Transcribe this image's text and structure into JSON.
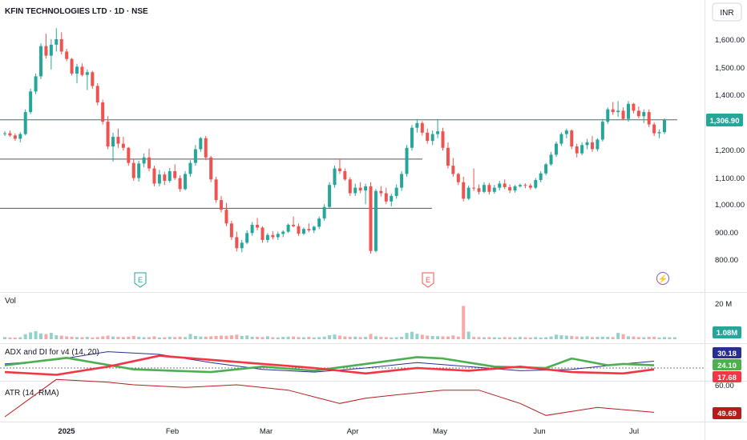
{
  "header": {
    "title": "KFIN TECHNOLOGIES LTD · 1D · NSE",
    "currency": "INR"
  },
  "colors": {
    "up": "#26a69a",
    "down": "#ef5350",
    "adx": "#2a2e8f",
    "di_plus": "#4caf50",
    "di_minus": "#f23645",
    "atr": "#b71c1c",
    "price_tag": "#26a69a"
  },
  "chart_data": [
    {
      "type": "candlestick",
      "title": "KFIN TECHNOLOGIES LTD · 1D · NSE",
      "y_axis": {
        "label": "INR",
        "ticks": [
          800,
          900,
          1000,
          1100,
          1200,
          1300,
          1400,
          1500,
          1600
        ],
        "tick_labels": [
          "800.00",
          "900.00",
          "1,000.00",
          "1,100.00",
          "1,200.00",
          "1,300.00",
          "1,400.00",
          "1,500.00",
          "1,600.00"
        ],
        "range": [
          765,
          1690
        ]
      },
      "x_axis": {
        "tick_labels": [
          {
            "label": "2025",
            "bold": true
          },
          {
            "label": "Feb"
          },
          {
            "label": "Mar"
          },
          {
            "label": "Apr"
          },
          {
            "label": "May"
          },
          {
            "label": "Jun"
          },
          {
            "label": "Jul"
          }
        ]
      },
      "last_price": 1306.9,
      "last_price_label": "1,306.90",
      "horizontal_lines": [
        1306.9,
        1164,
        985
      ],
      "events": [
        {
          "label": "E",
          "kind": "earnings",
          "color": "#26a69a"
        },
        {
          "label": "E",
          "kind": "earnings",
          "color": "#ef5350"
        },
        {
          "label": "⚡",
          "kind": "dividend",
          "color": "#7e57c2"
        }
      ],
      "candles": [
        [
          1255,
          1265,
          1248,
          1258
        ],
        [
          1258,
          1268,
          1245,
          1250
        ],
        [
          1250,
          1258,
          1230,
          1238
        ],
        [
          1238,
          1262,
          1225,
          1255
        ],
        [
          1255,
          1345,
          1250,
          1335
        ],
        [
          1335,
          1420,
          1328,
          1410
        ],
        [
          1410,
          1475,
          1400,
          1465
        ],
        [
          1465,
          1585,
          1455,
          1575
        ],
        [
          1575,
          1620,
          1530,
          1540
        ],
        [
          1540,
          1600,
          1490,
          1580
        ],
        [
          1580,
          1640,
          1555,
          1600
        ],
        [
          1600,
          1625,
          1545,
          1555
        ],
        [
          1555,
          1565,
          1520,
          1528
        ],
        [
          1528,
          1532,
          1468,
          1475
        ],
        [
          1475,
          1510,
          1440,
          1500
        ],
        [
          1500,
          1512,
          1465,
          1470
        ],
        [
          1470,
          1490,
          1415,
          1480
        ],
        [
          1480,
          1485,
          1420,
          1430
        ],
        [
          1430,
          1440,
          1360,
          1370
        ],
        [
          1370,
          1380,
          1290,
          1300
        ],
        [
          1300,
          1320,
          1200,
          1210
        ],
        [
          1210,
          1260,
          1155,
          1245
        ],
        [
          1245,
          1275,
          1205,
          1220
        ],
        [
          1220,
          1245,
          1195,
          1205
        ],
        [
          1205,
          1208,
          1140,
          1150
        ],
        [
          1150,
          1165,
          1085,
          1095
        ],
        [
          1095,
          1158,
          1082,
          1148
        ],
        [
          1148,
          1185,
          1135,
          1170
        ],
        [
          1170,
          1202,
          1120,
          1130
        ],
        [
          1130,
          1140,
          1065,
          1075
        ],
        [
          1075,
          1125,
          1065,
          1108
        ],
        [
          1108,
          1118,
          1070,
          1085
        ],
        [
          1085,
          1132,
          1078,
          1120
        ],
        [
          1120,
          1145,
          1088,
          1095
        ],
        [
          1095,
          1105,
          1045,
          1055
        ],
        [
          1055,
          1120,
          1050,
          1110
        ],
        [
          1110,
          1160,
          1100,
          1150
        ],
        [
          1150,
          1215,
          1140,
          1200
        ],
        [
          1200,
          1245,
          1190,
          1240
        ],
        [
          1240,
          1248,
          1160,
          1170
        ],
        [
          1170,
          1176,
          1080,
          1090
        ],
        [
          1090,
          1100,
          1005,
          1015
        ],
        [
          1015,
          1030,
          970,
          980
        ],
        [
          980,
          1005,
          920,
          930
        ],
        [
          930,
          940,
          870,
          880
        ],
        [
          880,
          900,
          828,
          840
        ],
        [
          840,
          870,
          825,
          860
        ],
        [
          860,
          905,
          855,
          895
        ],
        [
          895,
          935,
          885,
          925
        ],
        [
          925,
          950,
          905,
          915
        ],
        [
          915,
          920,
          860,
          870
        ],
        [
          870,
          895,
          860,
          888
        ],
        [
          888,
          902,
          872,
          880
        ],
        [
          880,
          900,
          870,
          892
        ],
        [
          892,
          905,
          880,
          900
        ],
        [
          900,
          930,
          895,
          925
        ],
        [
          925,
          955,
          915,
          920
        ],
        [
          920,
          930,
          885,
          893
        ],
        [
          893,
          915,
          888,
          910
        ],
        [
          910,
          930,
          898,
          905
        ],
        [
          905,
          922,
          895,
          918
        ],
        [
          918,
          955,
          910,
          948
        ],
        [
          948,
          1000,
          940,
          990
        ],
        [
          990,
          1080,
          985,
          1070
        ],
        [
          1070,
          1140,
          1060,
          1130
        ],
        [
          1130,
          1165,
          1110,
          1120
        ],
        [
          1120,
          1130,
          1085,
          1090
        ],
        [
          1090,
          1098,
          1030,
          1040
        ],
        [
          1040,
          1075,
          1030,
          1060
        ],
        [
          1060,
          1080,
          1040,
          1050
        ],
        [
          1050,
          1075,
          1000,
          1065
        ],
        [
          1065,
          1080,
          820,
          830
        ],
        [
          830,
          1055,
          825,
          1048
        ],
        [
          1048,
          1066,
          1028,
          1040
        ],
        [
          1040,
          1060,
          1000,
          1010
        ],
        [
          1010,
          1038,
          992,
          1030
        ],
        [
          1030,
          1072,
          1020,
          1060
        ],
        [
          1060,
          1120,
          1048,
          1110
        ],
        [
          1110,
          1215,
          1100,
          1205
        ],
        [
          1205,
          1288,
          1195,
          1278
        ],
        [
          1278,
          1310,
          1260,
          1295
        ],
        [
          1295,
          1302,
          1250,
          1260
        ],
        [
          1260,
          1275,
          1220,
          1230
        ],
        [
          1230,
          1268,
          1215,
          1255
        ],
        [
          1255,
          1310,
          1240,
          1265
        ],
        [
          1265,
          1278,
          1195,
          1205
        ],
        [
          1205,
          1225,
          1130,
          1140
        ],
        [
          1140,
          1168,
          1100,
          1110
        ],
        [
          1110,
          1115,
          1070,
          1080
        ],
        [
          1080,
          1100,
          1010,
          1020
        ],
        [
          1020,
          1068,
          1015,
          1060
        ],
        [
          1060,
          1130,
          1048,
          1058
        ],
        [
          1058,
          1072,
          1035,
          1045
        ],
        [
          1045,
          1080,
          1040,
          1070
        ],
        [
          1070,
          1078,
          1035,
          1045
        ],
        [
          1045,
          1070,
          1038,
          1060
        ],
        [
          1060,
          1085,
          1050,
          1075
        ],
        [
          1075,
          1090,
          1055,
          1062
        ],
        [
          1062,
          1072,
          1040,
          1050
        ],
        [
          1050,
          1070,
          1042,
          1065
        ],
        [
          1065,
          1075,
          1060,
          1070
        ],
        [
          1070,
          1076,
          1058,
          1068
        ],
        [
          1068,
          1075,
          1052,
          1060
        ],
        [
          1060,
          1095,
          1055,
          1088
        ],
        [
          1088,
          1120,
          1080,
          1112
        ],
        [
          1112,
          1150,
          1105,
          1145
        ],
        [
          1145,
          1190,
          1140,
          1180
        ],
        [
          1180,
          1228,
          1172,
          1220
        ],
        [
          1220,
          1262,
          1212,
          1255
        ],
        [
          1255,
          1275,
          1240,
          1268
        ],
        [
          1268,
          1272,
          1200,
          1210
        ],
        [
          1210,
          1220,
          1170,
          1185
        ],
        [
          1185,
          1225,
          1178,
          1215
        ],
        [
          1215,
          1238,
          1200,
          1225
        ],
        [
          1225,
          1248,
          1190,
          1200
        ],
        [
          1200,
          1240,
          1192,
          1235
        ],
        [
          1235,
          1310,
          1228,
          1300
        ],
        [
          1300,
          1352,
          1292,
          1345
        ],
        [
          1345,
          1372,
          1325,
          1335
        ],
        [
          1335,
          1375,
          1318,
          1340
        ],
        [
          1340,
          1352,
          1305,
          1310
        ],
        [
          1310,
          1375,
          1300,
          1365
        ],
        [
          1365,
          1368,
          1330,
          1340
        ],
        [
          1340,
          1355,
          1312,
          1320
        ],
        [
          1320,
          1345,
          1295,
          1335
        ],
        [
          1335,
          1345,
          1280,
          1290
        ],
        [
          1290,
          1298,
          1248,
          1258
        ],
        [
          1258,
          1272,
          1240,
          1262
        ],
        [
          1262,
          1312,
          1255,
          1306.9
        ]
      ]
    },
    {
      "type": "bar",
      "title": "Vol",
      "y_axis": {
        "tick_labels": [
          "20 M"
        ],
        "ticks": [
          20
        ]
      },
      "last_value_label": "1.08M",
      "unit": "M",
      "values": [
        1.2,
        1.0,
        0.9,
        1.1,
        2.8,
        3.8,
        4.5,
        3.2,
        2.9,
        3.6,
        2.2,
        2.0,
        1.6,
        1.4,
        1.2,
        1.1,
        1.3,
        1.0,
        1.2,
        1.6,
        2.0,
        1.5,
        1.3,
        1.2,
        1.4,
        1.8,
        1.3,
        1.1,
        1.2,
        1.6,
        1.0,
        1.1,
        1.3,
        1.2,
        1.4,
        1.2,
        2.9,
        1.8,
        1.5,
        1.4,
        1.6,
        1.8,
        2.0,
        1.9,
        2.2,
        2.5,
        1.8,
        2.1,
        1.4,
        1.3,
        1.2,
        1.6,
        1.1,
        1.0,
        1.3,
        1.4,
        1.5,
        1.2,
        1.1,
        1.3,
        1.0,
        1.2,
        1.4,
        2.2,
        2.6,
        2.0,
        1.5,
        1.3,
        1.4,
        1.2,
        1.3,
        2.9,
        1.6,
        1.3,
        1.2,
        1.0,
        1.1,
        1.3,
        3.5,
        4.1,
        3.0,
        2.5,
        2.0,
        1.8,
        1.7,
        1.6,
        1.5,
        2.1,
        1.4,
        18.5,
        4.2,
        1.3,
        1.2,
        1.1,
        1.2,
        1.1,
        1.0,
        1.2,
        1.1,
        1.0,
        1.3,
        1.1,
        1.0,
        1.2,
        1.0,
        1.1,
        1.5,
        2.5,
        2.2,
        2.0,
        1.8,
        1.5,
        1.4,
        1.6,
        1.2,
        1.3,
        1.4,
        1.3,
        1.2,
        3.5,
        2.8,
        1.6,
        1.5,
        1.2,
        1.1,
        1.3,
        1.4,
        1.0,
        1.2,
        1.1,
        1.08
      ],
      "ylim": [
        0,
        24
      ]
    },
    {
      "type": "line",
      "title": "ADX and DI for v4 (14, 20)",
      "reference_line": 20,
      "labels": {
        "adx": "30.18",
        "di_plus": "24.10",
        "di_minus": "17.68"
      },
      "ylim": [
        0,
        60
      ],
      "series": [
        {
          "key": "adx",
          "x": [
            0,
            10,
            20,
            30,
            40,
            50,
            60,
            70,
            80,
            90,
            100,
            110,
            120,
            126
          ],
          "values": [
            26,
            32,
            44,
            40,
            28,
            18,
            14,
            20,
            28,
            22,
            16,
            18,
            26,
            30
          ]
        },
        {
          "key": "di_plus",
          "x": [
            0,
            12,
            25,
            40,
            50,
            60,
            70,
            80,
            85,
            95,
            105,
            110,
            117,
            120,
            126
          ],
          "values": [
            24,
            35,
            18,
            14,
            22,
            16,
            26,
            36,
            34,
            22,
            20,
            34,
            24,
            26,
            24
          ]
        },
        {
          "key": "di_minus",
          "x": [
            0,
            10,
            20,
            30,
            40,
            50,
            60,
            70,
            80,
            90,
            100,
            110,
            120,
            126
          ],
          "values": [
            14,
            10,
            22,
            38,
            32,
            26,
            20,
            12,
            20,
            16,
            22,
            14,
            12,
            18
          ]
        }
      ]
    },
    {
      "type": "line",
      "title": "ATR (14, RMA)",
      "y_axis": {
        "tick_labels": [
          "60.00"
        ],
        "ticks": [
          60
        ]
      },
      "last_value_label": "49.69",
      "ylim": [
        46,
        62
      ],
      "series": [
        {
          "key": "atr",
          "x": [
            0,
            5,
            10,
            20,
            25,
            35,
            45,
            55,
            65,
            70,
            75,
            85,
            92,
            100,
            105,
            110,
            115,
            126
          ],
          "values": [
            48,
            55,
            62,
            61,
            60,
            59,
            60,
            58,
            53,
            55,
            56,
            58,
            58,
            53,
            48.5,
            50,
            51.5,
            49.69
          ]
        }
      ]
    }
  ]
}
